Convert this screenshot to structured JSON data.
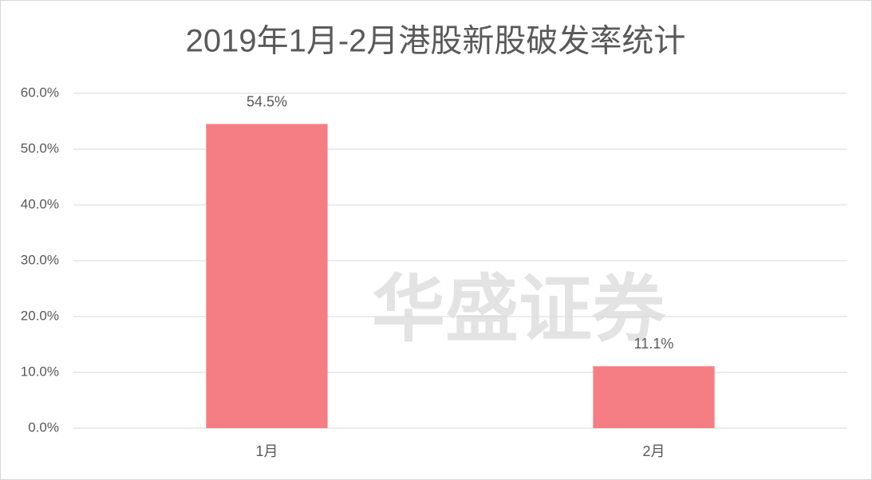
{
  "chart_data": {
    "type": "bar",
    "title": "2019年1月-2月港股新股破发率统计",
    "categories": [
      "1月",
      "2月"
    ],
    "values": [
      54.5,
      11.1
    ],
    "value_labels": [
      "54.5%",
      "11.1%"
    ],
    "color": "#f47e84",
    "ylim": [
      0,
      60
    ],
    "yticks": [
      {
        "value": 0,
        "label": "0.0%"
      },
      {
        "value": 10,
        "label": "10.0%"
      },
      {
        "value": 20,
        "label": "20.0%"
      },
      {
        "value": 30,
        "label": "30.0%"
      },
      {
        "value": 40,
        "label": "40.0%"
      },
      {
        "value": 50,
        "label": "50.0%"
      },
      {
        "value": 60,
        "label": "60.0%"
      }
    ],
    "grid": true,
    "watermark": "华盛证券"
  }
}
